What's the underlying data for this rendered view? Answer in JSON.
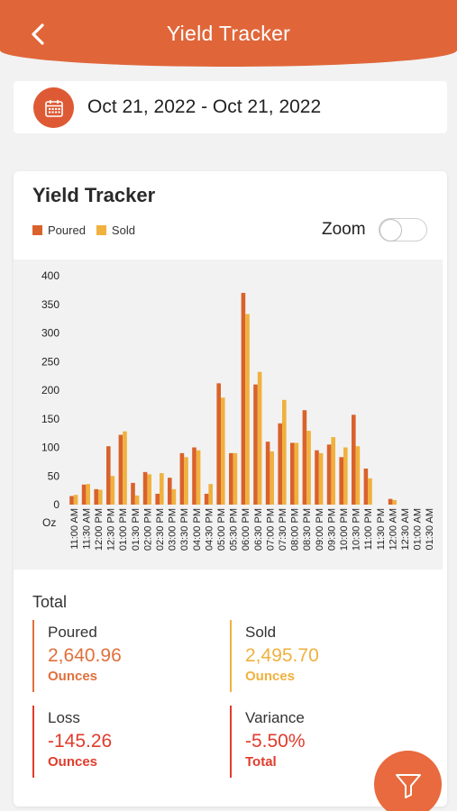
{
  "header": {
    "title": "Yield Tracker",
    "back_icon": "chevron-left-icon",
    "color": "#e0663a"
  },
  "date_range": {
    "label": "Oct 21, 2022 - Oct 21, 2022",
    "icon": "calendar-icon"
  },
  "card": {
    "title": "Yield Tracker",
    "legend": [
      {
        "name": "Poured",
        "color": "#d9622c"
      },
      {
        "name": "Sold",
        "color": "#f0b13e"
      }
    ],
    "zoom_label": "Zoom",
    "zoom_on": false
  },
  "chart_data": {
    "type": "bar",
    "title": "",
    "xlabel": "",
    "ylabel": "Oz",
    "ylim": [
      0,
      400
    ],
    "yticks": [
      0,
      50,
      100,
      150,
      200,
      250,
      300,
      350,
      400
    ],
    "categories": [
      "11:00 AM",
      "11:30 AM",
      "12:00 PM",
      "12:30 PM",
      "01:00 PM",
      "01:30 PM",
      "02:00 PM",
      "02:30 PM",
      "03:00 PM",
      "03:30 PM",
      "04:00 PM",
      "04:30 PM",
      "05:00 PM",
      "05:30 PM",
      "06:00 PM",
      "06:30 PM",
      "07:00 PM",
      "07:30 PM",
      "08:00 PM",
      "08:30 PM",
      "09:00 PM",
      "09:30 PM",
      "10:00 PM",
      "10:30 PM",
      "11:00 PM",
      "11:30 PM",
      "12:00 AM",
      "12:30 AM",
      "01:00 AM",
      "01:30 AM"
    ],
    "series": [
      {
        "name": "Poured",
        "color": "#d9622c",
        "values": [
          15,
          35,
          27,
          102,
          122,
          38,
          57,
          19,
          47,
          90,
          100,
          19,
          212,
          90,
          370,
          210,
          110,
          142,
          108,
          165,
          95,
          105,
          83,
          157,
          63,
          0,
          10,
          0,
          0,
          0
        ]
      },
      {
        "name": "Sold",
        "color": "#f0b13e",
        "values": [
          17,
          36,
          26,
          50,
          128,
          16,
          53,
          55,
          27,
          83,
          95,
          36,
          187,
          90,
          333,
          232,
          93,
          183,
          108,
          129,
          90,
          118,
          100,
          102,
          46,
          0,
          8,
          0,
          0,
          0
        ]
      }
    ]
  },
  "totals": {
    "label": "Total",
    "poured": {
      "title": "Poured",
      "value": "2,640.96",
      "unit": "Ounces",
      "color": "#e0703d"
    },
    "sold": {
      "title": "Sold",
      "value": "2,495.70",
      "unit": "Ounces",
      "color": "#f0b13e"
    },
    "loss": {
      "title": "Loss",
      "value": "-145.26",
      "unit": "Ounces",
      "color": "#e03c2c"
    },
    "variance": {
      "title": "Variance",
      "value": "-5.50%",
      "unit": "Total",
      "color": "#e03c2c"
    }
  },
  "fab": {
    "icon": "filter-icon"
  }
}
